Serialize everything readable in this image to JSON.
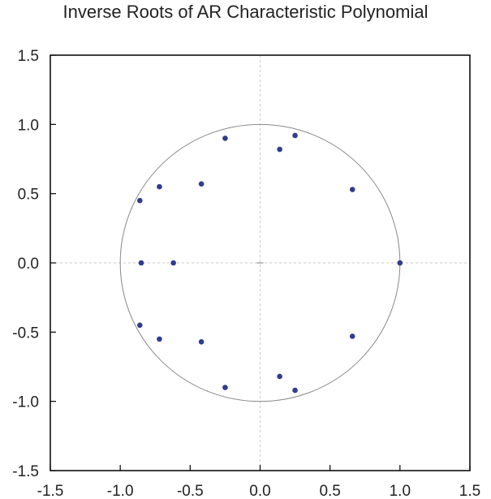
{
  "chart_data": {
    "type": "scatter",
    "title": "Inverse Roots of AR Characteristic Polynomial",
    "xlim": [
      -1.5,
      1.5
    ],
    "ylim": [
      -1.5,
      1.5
    ],
    "x_ticks": [
      "-1.5",
      "-1.0",
      "-0.5",
      "0.0",
      "0.5",
      "1.0",
      "1.5"
    ],
    "y_ticks": [
      "1.5",
      "1.0",
      "0.5",
      "0.0",
      "-0.5",
      "-1.0",
      "-1.5"
    ],
    "unit_circle": true,
    "grid": false,
    "colors": {
      "points": "#2e3d8f",
      "circle": "#888888",
      "frame": "#000000"
    },
    "points": [
      {
        "x": -0.25,
        "y": 0.9
      },
      {
        "x": 0.14,
        "y": 0.82
      },
      {
        "x": 0.25,
        "y": 0.92
      },
      {
        "x": -0.42,
        "y": 0.57
      },
      {
        "x": -0.72,
        "y": 0.55
      },
      {
        "x": -0.86,
        "y": 0.45
      },
      {
        "x": 0.66,
        "y": 0.53
      },
      {
        "x": -0.85,
        "y": 0.0
      },
      {
        "x": -0.62,
        "y": 0.0
      },
      {
        "x": 1.0,
        "y": 0.0
      },
      {
        "x": -0.86,
        "y": -0.45
      },
      {
        "x": -0.72,
        "y": -0.55
      },
      {
        "x": -0.42,
        "y": -0.57
      },
      {
        "x": 0.66,
        "y": -0.53
      },
      {
        "x": -0.25,
        "y": -0.9
      },
      {
        "x": 0.14,
        "y": -0.82
      },
      {
        "x": 0.25,
        "y": -0.92
      }
    ]
  }
}
